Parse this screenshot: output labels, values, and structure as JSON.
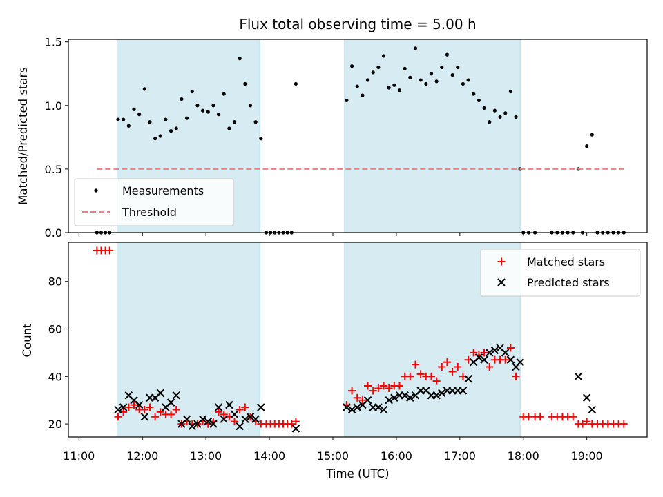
{
  "figure": {
    "title": "Flux total observing time = 5.00 h",
    "xlabel": "Time (UTC)",
    "x_ticks": [
      "11:00",
      "12:00",
      "13:00",
      "14:00",
      "15:00",
      "16:00",
      "17:00",
      "18:00",
      "19:00"
    ],
    "shaded_intervals": [
      [
        "11:36",
        "13:51"
      ],
      [
        "15:11",
        "17:57"
      ]
    ],
    "shade_color": "#add8e6",
    "xlim": [
      "10:50",
      "19:57"
    ]
  },
  "chart_data": [
    {
      "type": "scatter",
      "panel": "top",
      "ylabel": "Matched/Predicted stars",
      "ylim": [
        0,
        1.52
      ],
      "y_ticks": [
        "0.0",
        "0.5",
        "1.0",
        "1.5"
      ],
      "legend_position": "lower-left",
      "series": [
        {
          "name": "Measurements",
          "color": "#000000",
          "marker": "dot",
          "points": [
            [
              "11:17",
              0
            ],
            [
              "11:21",
              0
            ],
            [
              "11:25",
              0
            ],
            [
              "11:29",
              0
            ],
            [
              "11:37",
              0.89
            ],
            [
              "11:42",
              0.89
            ],
            [
              "11:47",
              0.84
            ],
            [
              "11:52",
              0.97
            ],
            [
              "11:57",
              0.93
            ],
            [
              "12:02",
              1.13
            ],
            [
              "12:07",
              0.87
            ],
            [
              "12:12",
              0.74
            ],
            [
              "12:17",
              0.76
            ],
            [
              "12:22",
              0.89
            ],
            [
              "12:27",
              0.8
            ],
            [
              "12:32",
              0.82
            ],
            [
              "12:37",
              1.05
            ],
            [
              "12:42",
              0.9
            ],
            [
              "12:47",
              1.11
            ],
            [
              "12:52",
              1.0
            ],
            [
              "12:57",
              0.96
            ],
            [
              "13:02",
              0.95
            ],
            [
              "13:07",
              1.0
            ],
            [
              "13:12",
              0.93
            ],
            [
              "13:17",
              1.09
            ],
            [
              "13:22",
              0.82
            ],
            [
              "13:27",
              0.87
            ],
            [
              "13:32",
              1.37
            ],
            [
              "13:37",
              1.17
            ],
            [
              "13:42",
              1.0
            ],
            [
              "13:47",
              0.87
            ],
            [
              "13:52",
              0.74
            ],
            [
              "13:57",
              0
            ],
            [
              "14:01",
              0
            ],
            [
              "14:05",
              0
            ],
            [
              "14:09",
              0
            ],
            [
              "14:13",
              0
            ],
            [
              "14:17",
              0
            ],
            [
              "14:21",
              0
            ],
            [
              "14:25",
              1.17
            ],
            [
              "15:13",
              1.04
            ],
            [
              "15:18",
              1.31
            ],
            [
              "15:23",
              1.15
            ],
            [
              "15:28",
              1.08
            ],
            [
              "15:33",
              1.2
            ],
            [
              "15:38",
              1.26
            ],
            [
              "15:43",
              1.3
            ],
            [
              "15:48",
              1.39
            ],
            [
              "15:53",
              1.14
            ],
            [
              "15:58",
              1.16
            ],
            [
              "16:03",
              1.12
            ],
            [
              "16:08",
              1.29
            ],
            [
              "16:13",
              1.22
            ],
            [
              "16:18",
              1.45
            ],
            [
              "16:23",
              1.2
            ],
            [
              "16:28",
              1.17
            ],
            [
              "16:33",
              1.25
            ],
            [
              "16:38",
              1.19
            ],
            [
              "16:43",
              1.3
            ],
            [
              "16:48",
              1.4
            ],
            [
              "16:53",
              1.24
            ],
            [
              "16:58",
              1.3
            ],
            [
              "17:03",
              1.17
            ],
            [
              "17:08",
              1.2
            ],
            [
              "17:13",
              1.09
            ],
            [
              "17:18",
              1.04
            ],
            [
              "17:23",
              0.98
            ],
            [
              "17:28",
              0.87
            ],
            [
              "17:33",
              0.96
            ],
            [
              "17:38",
              0.91
            ],
            [
              "17:43",
              0.94
            ],
            [
              "17:48",
              1.11
            ],
            [
              "17:53",
              0.91
            ],
            [
              "17:57",
              0.5
            ],
            [
              "18:00",
              0
            ],
            [
              "18:05",
              0
            ],
            [
              "18:11",
              0
            ],
            [
              "18:27",
              0
            ],
            [
              "18:32",
              0
            ],
            [
              "18:37",
              0
            ],
            [
              "18:42",
              0
            ],
            [
              "18:47",
              0
            ],
            [
              "18:52",
              0.5
            ],
            [
              "18:56",
              0
            ],
            [
              "19:00",
              0.68
            ],
            [
              "19:05",
              0.77
            ],
            [
              "19:10",
              0
            ],
            [
              "19:15",
              0
            ],
            [
              "19:20",
              0
            ],
            [
              "19:25",
              0
            ],
            [
              "19:30",
              0
            ],
            [
              "19:35",
              0
            ]
          ]
        },
        {
          "name": "Threshold",
          "color": "#f08080",
          "line_style": "dashed",
          "points": [
            [
              "11:17",
              0.5
            ],
            [
              "19:35",
              0.5
            ]
          ]
        }
      ]
    },
    {
      "type": "scatter",
      "panel": "bottom",
      "ylabel": "Count",
      "ylim": [
        14.5,
        96.5
      ],
      "y_ticks": [
        "20",
        "40",
        "60",
        "80"
      ],
      "legend_position": "top-right",
      "series": [
        {
          "name": "Matched stars",
          "color": "#ff0000",
          "marker": "plus",
          "points": [
            [
              "11:17",
              93
            ],
            [
              "11:21",
              93
            ],
            [
              "11:25",
              93
            ],
            [
              "11:29",
              93
            ],
            [
              "11:37",
              23
            ],
            [
              "11:42",
              25
            ],
            [
              "11:47",
              27
            ],
            [
              "11:52",
              28
            ],
            [
              "11:57",
              26
            ],
            [
              "12:02",
              26
            ],
            [
              "12:07",
              27
            ],
            [
              "12:12",
              23
            ],
            [
              "12:17",
              25
            ],
            [
              "12:22",
              24
            ],
            [
              "12:27",
              24
            ],
            [
              "12:32",
              26
            ],
            [
              "12:37",
              20
            ],
            [
              "12:42",
              21
            ],
            [
              "12:47",
              20
            ],
            [
              "12:52",
              20
            ],
            [
              "12:57",
              21
            ],
            [
              "13:02",
              20
            ],
            [
              "13:07",
              21
            ],
            [
              "13:12",
              25
            ],
            [
              "13:17",
              24
            ],
            [
              "13:22",
              23
            ],
            [
              "13:27",
              21
            ],
            [
              "13:32",
              26
            ],
            [
              "13:37",
              27
            ],
            [
              "13:42",
              23
            ],
            [
              "13:47",
              21
            ],
            [
              "13:52",
              20
            ],
            [
              "13:57",
              20
            ],
            [
              "14:01",
              20
            ],
            [
              "14:05",
              20
            ],
            [
              "14:09",
              20
            ],
            [
              "14:13",
              20
            ],
            [
              "14:17",
              20
            ],
            [
              "14:21",
              20
            ],
            [
              "14:25",
              21
            ],
            [
              "15:13",
              28
            ],
            [
              "15:18",
              34
            ],
            [
              "15:23",
              31
            ],
            [
              "15:28",
              30
            ],
            [
              "15:33",
              36
            ],
            [
              "15:38",
              34
            ],
            [
              "15:43",
              35
            ],
            [
              "15:48",
              36
            ],
            [
              "15:53",
              35
            ],
            [
              "15:58",
              36
            ],
            [
              "16:03",
              36
            ],
            [
              "16:08",
              40
            ],
            [
              "16:13",
              40
            ],
            [
              "16:18",
              45
            ],
            [
              "16:23",
              41
            ],
            [
              "16:28",
              40
            ],
            [
              "16:33",
              40
            ],
            [
              "16:38",
              38
            ],
            [
              "16:43",
              44
            ],
            [
              "16:48",
              46
            ],
            [
              "16:53",
              42
            ],
            [
              "16:58",
              44
            ],
            [
              "17:03",
              40
            ],
            [
              "17:08",
              47
            ],
            [
              "17:13",
              50
            ],
            [
              "17:18",
              49
            ],
            [
              "17:23",
              50
            ],
            [
              "17:28",
              44
            ],
            [
              "17:33",
              47
            ],
            [
              "17:38",
              47
            ],
            [
              "17:43",
              47
            ],
            [
              "17:48",
              52
            ],
            [
              "17:53",
              40
            ],
            [
              "18:00",
              23
            ],
            [
              "18:05",
              23
            ],
            [
              "18:11",
              23
            ],
            [
              "18:16",
              23
            ],
            [
              "18:27",
              23
            ],
            [
              "18:32",
              23
            ],
            [
              "18:37",
              23
            ],
            [
              "18:42",
              23
            ],
            [
              "18:47",
              23
            ],
            [
              "18:52",
              20
            ],
            [
              "18:56",
              20
            ],
            [
              "19:00",
              21
            ],
            [
              "19:05",
              20
            ],
            [
              "19:10",
              20
            ],
            [
              "19:15",
              20
            ],
            [
              "19:20",
              20
            ],
            [
              "19:25",
              20
            ],
            [
              "19:30",
              20
            ],
            [
              "19:35",
              20
            ]
          ]
        },
        {
          "name": "Predicted stars",
          "color": "#000000",
          "marker": "x",
          "points": [
            [
              "11:37",
              26
            ],
            [
              "11:42",
              27
            ],
            [
              "11:47",
              32
            ],
            [
              "11:52",
              30
            ],
            [
              "11:57",
              28
            ],
            [
              "12:02",
              23
            ],
            [
              "12:07",
              31
            ],
            [
              "12:12",
              31
            ],
            [
              "12:17",
              33
            ],
            [
              "12:22",
              27
            ],
            [
              "12:27",
              29
            ],
            [
              "12:32",
              32
            ],
            [
              "12:37",
              20
            ],
            [
              "12:42",
              22
            ],
            [
              "12:47",
              19
            ],
            [
              "12:52",
              20
            ],
            [
              "12:57",
              22
            ],
            [
              "13:02",
              21
            ],
            [
              "13:07",
              20
            ],
            [
              "13:12",
              27
            ],
            [
              "13:17",
              22
            ],
            [
              "13:22",
              28
            ],
            [
              "13:27",
              24
            ],
            [
              "13:32",
              19
            ],
            [
              "13:37",
              22
            ],
            [
              "13:42",
              23
            ],
            [
              "13:47",
              22
            ],
            [
              "13:52",
              27
            ],
            [
              "14:25",
              18
            ],
            [
              "15:13",
              27
            ],
            [
              "15:18",
              26
            ],
            [
              "15:23",
              27
            ],
            [
              "15:28",
              28
            ],
            [
              "15:33",
              30
            ],
            [
              "15:38",
              27
            ],
            [
              "15:43",
              27
            ],
            [
              "15:48",
              26
            ],
            [
              "15:53",
              30
            ],
            [
              "15:58",
              31
            ],
            [
              "16:03",
              32
            ],
            [
              "16:08",
              32
            ],
            [
              "16:13",
              31
            ],
            [
              "16:18",
              32
            ],
            [
              "16:23",
              34
            ],
            [
              "16:28",
              34
            ],
            [
              "16:33",
              32
            ],
            [
              "16:38",
              32
            ],
            [
              "16:43",
              33
            ],
            [
              "16:48",
              34
            ],
            [
              "16:53",
              34
            ],
            [
              "16:58",
              34
            ],
            [
              "17:03",
              34
            ],
            [
              "17:08",
              39
            ],
            [
              "17:13",
              46
            ],
            [
              "17:18",
              48
            ],
            [
              "17:23",
              47
            ],
            [
              "17:28",
              50
            ],
            [
              "17:33",
              51
            ],
            [
              "17:38",
              52
            ],
            [
              "17:43",
              50
            ],
            [
              "17:48",
              47
            ],
            [
              "17:53",
              44
            ],
            [
              "17:57",
              46
            ],
            [
              "18:52",
              40
            ],
            [
              "19:00",
              31
            ],
            [
              "19:05",
              26
            ]
          ]
        }
      ]
    }
  ]
}
